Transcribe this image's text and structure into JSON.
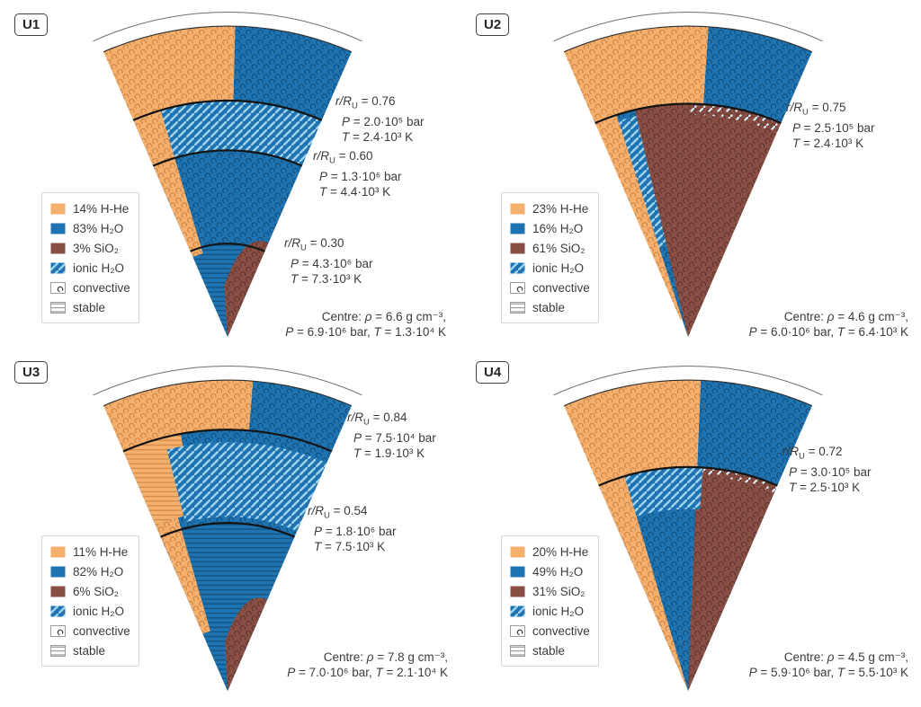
{
  "colors": {
    "h_he": "#F4B06C",
    "h_he_dark": "#CE8448",
    "h2o": "#1E73B0",
    "h2o_dark": "#0E4F7E",
    "sio2": "#8A4F44",
    "sio2_dark": "#5F342C",
    "ionic_stripe": "#9FD3EF",
    "stable_line_blue": "#11517E",
    "stable_line_orange": "#D0894B",
    "boundary": "#141414",
    "text": "#3B3B3B"
  },
  "panels": [
    {
      "label": "U1",
      "annotations": [
        {
          "rR": "r/R",
          "sub": "U",
          "val": " = 0.76",
          "P": "P",
          "P_val": " = 2.0·10⁵ bar",
          "T": "T",
          "T_val": " = 2.4·10³ K"
        },
        {
          "rR": "r/R",
          "sub": "U",
          "val": " = 0.60",
          "P": "P",
          "P_val": " = 1.3·10⁶ bar",
          "T": "T",
          "T_val": " = 4.4·10³ K"
        },
        {
          "rR": "r/R",
          "sub": "U",
          "val": " = 0.30",
          "P": "P",
          "P_val": " = 4.3·10⁶ bar",
          "T": "T",
          "T_val": " = 7.3·10³ K"
        }
      ],
      "legend": [
        {
          "label": "14% H-He"
        },
        {
          "label": "83% H₂O"
        },
        {
          "label": "3% SiO₂"
        },
        {
          "label": "ionic H₂O"
        },
        {
          "label": "convective"
        },
        {
          "label": "stable"
        }
      ],
      "centre": {
        "pre": "Centre: ",
        "rho": "ρ",
        "rho_val": " = 6.6 g cm⁻³,",
        "P": "P",
        "P_val": " = 6.9·10⁶ bar, ",
        "T": "T",
        "T_val": " = 1.3·10⁴ K"
      }
    },
    {
      "label": "U2",
      "annotations": [
        {
          "rR": "r/R",
          "sub": "U",
          "val": " = 0.75",
          "P": "P",
          "P_val": " = 2.5·10⁵ bar",
          "T": "T",
          "T_val": " = 2.4·10³ K"
        }
      ],
      "legend": [
        {
          "label": "23% H-He"
        },
        {
          "label": "16% H₂O"
        },
        {
          "label": "61% SiO₂"
        },
        {
          "label": "ionic H₂O"
        },
        {
          "label": "convective"
        },
        {
          "label": "stable"
        }
      ],
      "centre": {
        "pre": "Centre: ",
        "rho": "ρ",
        "rho_val": " = 4.6 g cm⁻³,",
        "P": "P",
        "P_val": " = 6.0·10⁶ bar, ",
        "T": "T",
        "T_val": " = 6.4·10³ K"
      }
    },
    {
      "label": "U3",
      "annotations": [
        {
          "rR": "r/R",
          "sub": "U",
          "val": " = 0.84",
          "P": "P",
          "P_val": " = 7.5·10⁴ bar",
          "T": "T",
          "T_val": " = 1.9·10³ K"
        },
        {
          "rR": "r/R",
          "sub": "U",
          "val": " = 0.54",
          "P": "P",
          "P_val": " = 1.8·10⁶ bar",
          "T": "T",
          "T_val": " = 7.5·10³ K"
        }
      ],
      "legend": [
        {
          "label": "11% H-He"
        },
        {
          "label": "82% H₂O"
        },
        {
          "label": "6% SiO₂"
        },
        {
          "label": "ionic H₂O"
        },
        {
          "label": "convective"
        },
        {
          "label": "stable"
        }
      ],
      "centre": {
        "pre": "Centre: ",
        "rho": "ρ",
        "rho_val": " = 7.8 g cm⁻³,",
        "P": "P",
        "P_val": " = 7.0·10⁶ bar, ",
        "T": "T",
        "T_val": " = 2.1·10⁴ K"
      }
    },
    {
      "label": "U4",
      "annotations": [
        {
          "rR": "r/R",
          "sub": "U",
          "val": " = 0.72",
          "P": "P",
          "P_val": " = 3.0·10⁵ bar",
          "T": "T",
          "T_val": " = 2.5·10³ K"
        }
      ],
      "legend": [
        {
          "label": "20% H-He"
        },
        {
          "label": "49% H₂O"
        },
        {
          "label": "31% SiO₂"
        },
        {
          "label": "ionic H₂O"
        },
        {
          "label": "convective"
        },
        {
          "label": "stable"
        }
      ],
      "centre": {
        "pre": "Centre: ",
        "rho": "ρ",
        "rho_val": " = 4.5 g cm⁻³,",
        "P": "P",
        "P_val": " = 5.9·10⁶ bar, ",
        "T": "T",
        "T_val": " = 5.5·10³ K"
      }
    }
  ]
}
